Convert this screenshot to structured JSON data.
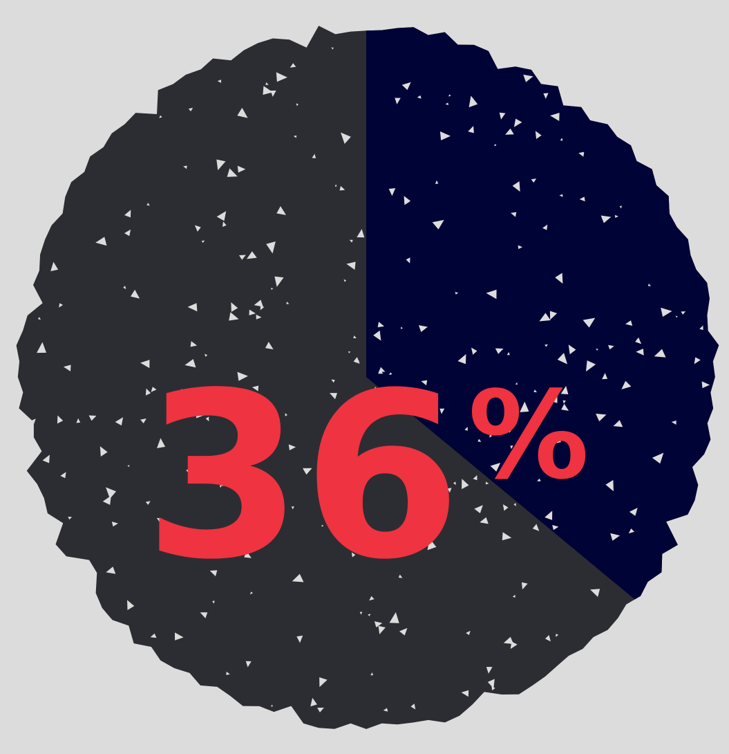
{
  "chart_data": {
    "type": "pie",
    "series": [
      {
        "values": [
          36,
          64
        ]
      }
    ],
    "highlight_value": "36",
    "highlight_unit": "%",
    "colors": {
      "highlight": "#000335",
      "remainder": "#2c2d32",
      "label": "#ef3340",
      "background": "#dcdcdc",
      "speckle": "#dcdcdc"
    },
    "legend": "none",
    "grid": false
  }
}
